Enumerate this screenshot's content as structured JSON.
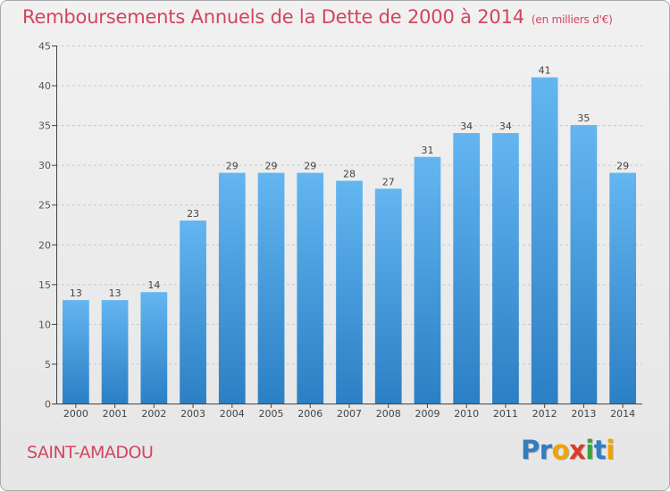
{
  "header": {
    "title": "Remboursements Annuels de la Dette de 2000 à 2014",
    "unit": "(en milliers d'€)"
  },
  "footer": {
    "commune": "SAINT-AMADOU",
    "logo_letters": [
      "P",
      "r",
      "o",
      "x",
      "i",
      "t",
      "i"
    ],
    "logo_colors": [
      "#2e7ec1",
      "#2e7ec1",
      "#f0a400",
      "#d93c2a",
      "#3aa33a",
      "#2e7ec1",
      "#f0a400"
    ]
  },
  "colors": {
    "bar_top": "#63b6f0",
    "bar_bottom": "#2b7fc4",
    "axis": "#444444",
    "grid": "#c8c8c8",
    "accent": "#d2455f"
  },
  "chart_data": {
    "type": "bar",
    "title": "Remboursements Annuels de la Dette de 2000 à 2014",
    "subtitle": "(en milliers d'€)",
    "categories": [
      "2000",
      "2001",
      "2002",
      "2003",
      "2004",
      "2005",
      "2006",
      "2007",
      "2008",
      "2009",
      "2010",
      "2011",
      "2012",
      "2013",
      "2014"
    ],
    "values": [
      13,
      13,
      14,
      23,
      29,
      29,
      29,
      28,
      27,
      31,
      34,
      34,
      41,
      35,
      29
    ],
    "ylim": [
      0,
      45
    ],
    "yticks": [
      0,
      5,
      10,
      15,
      20,
      25,
      30,
      35,
      40,
      45
    ],
    "grid": "horizontal dashed",
    "xlabel": "",
    "ylabel": ""
  }
}
